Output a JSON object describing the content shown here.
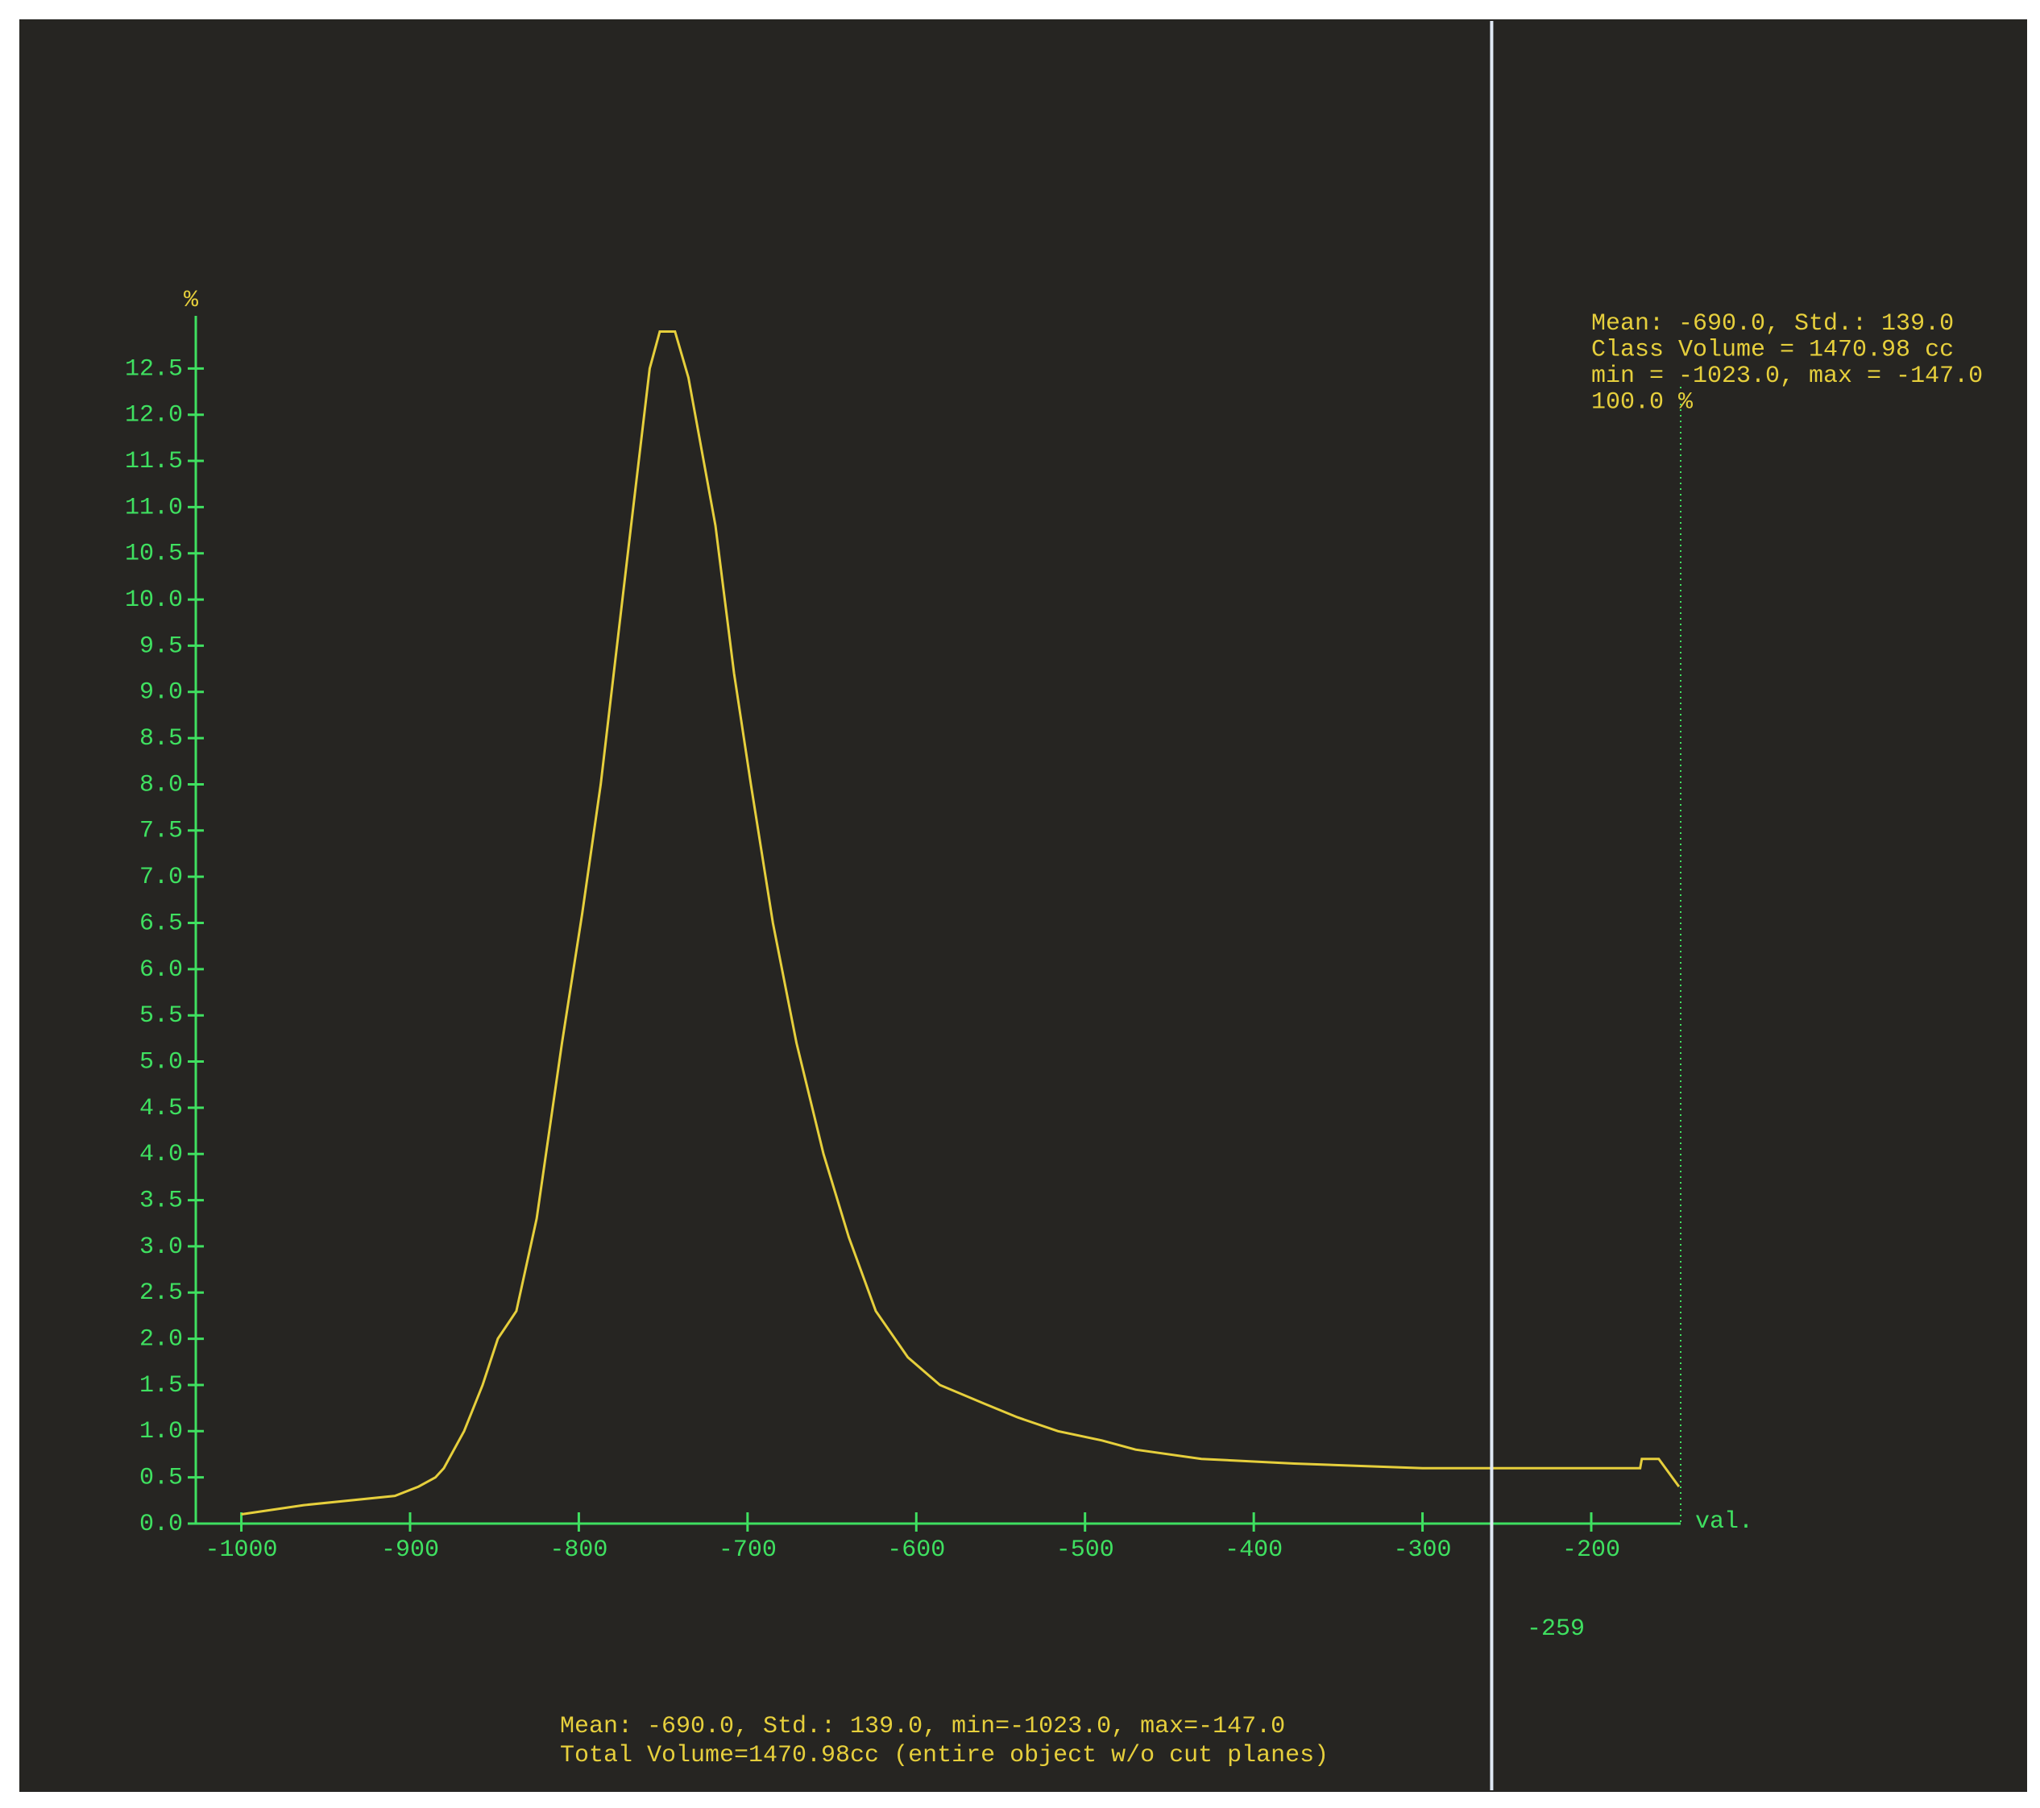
{
  "chart_data": {
    "type": "line",
    "y_label": "%",
    "x_label": "val.",
    "x": [
      -1000,
      -963,
      -909,
      -895,
      -885,
      -880,
      -868,
      -857,
      -848,
      -837,
      -825,
      -810,
      -798,
      -787,
      -769,
      -758,
      -752,
      -743,
      -735,
      -719,
      -708,
      -698,
      -685,
      -671,
      -655,
      -640,
      -624,
      -605,
      -586,
      -560,
      -540,
      -516,
      -490,
      -470,
      -431,
      -376,
      -300,
      -200,
      -171,
      -170,
      -160,
      -148
    ],
    "values": [
      0.1,
      0.2,
      0.3,
      0.4,
      0.5,
      0.6,
      1.0,
      1.5,
      2.0,
      2.3,
      3.3,
      5.2,
      6.6,
      8.0,
      10.8,
      12.5,
      12.9,
      12.9,
      12.4,
      10.8,
      9.2,
      8.0,
      6.5,
      5.2,
      4.0,
      3.1,
      2.3,
      1.8,
      1.5,
      1.3,
      1.15,
      1.0,
      0.9,
      0.8,
      0.7,
      0.65,
      0.6,
      0.6,
      0.6,
      0.7,
      0.7,
      0.4
    ],
    "color": "#e6cf3c",
    "axis_color": "#3fe060",
    "xlim": [
      -1027,
      -147
    ],
    "xticks": [
      -1000,
      -900,
      -800,
      -700,
      -600,
      -500,
      -400,
      -300,
      -200
    ],
    "ylim": [
      0,
      13
    ],
    "yticks": [
      {
        "value": 0,
        "label": "0.0"
      },
      0.5,
      {
        "value": 1,
        "label": "1.0"
      },
      1.5,
      {
        "value": 2,
        "label": "2.0"
      },
      2.5,
      {
        "value": 3,
        "label": "3.0"
      },
      3.5,
      {
        "value": 4,
        "label": "4.0"
      },
      4.5,
      {
        "value": 5,
        "label": "5.0"
      },
      5.5,
      {
        "value": 6,
        "label": "6.0"
      },
      6.5,
      {
        "value": 7,
        "label": "7.0"
      },
      7.5,
      {
        "value": 8,
        "label": "8.0"
      },
      8.5,
      {
        "value": 9,
        "label": "9.0"
      },
      9.5,
      {
        "value": 10,
        "label": "10.0"
      },
      10.5,
      {
        "value": 11,
        "label": "11.0"
      },
      11.5,
      {
        "value": 12,
        "label": "12.0"
      },
      12.5
    ],
    "cursor": -259,
    "info_box": [
      "Mean: -690.0, Std.: 139.0",
      "Class Volume = 1470.98 cc",
      "min = -1023.0, max = -147.0",
      "100.0 %"
    ],
    "footer": [
      "Mean: -690.0, Std.: 139.0, min=-1023.0, max=-147.0",
      "Total Volume=1470.98cc (entire object w/o cut planes)"
    ]
  }
}
